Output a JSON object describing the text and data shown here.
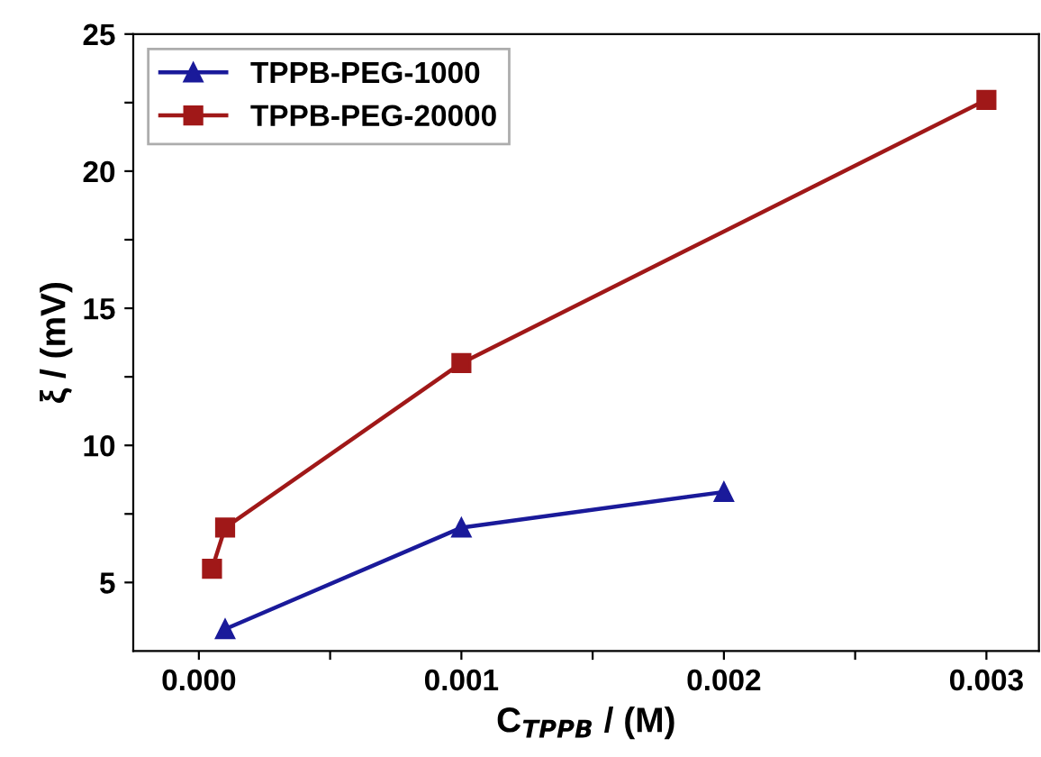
{
  "chart_data": {
    "type": "line",
    "xlabel": "C$_{TPPB}$ / (M)",
    "ylabel": "ξ / (mV)",
    "xlim": [
      -0.00025,
      0.0032
    ],
    "ylim": [
      2.5,
      25
    ],
    "xticks": [
      {
        "value": 0.0,
        "label": "0.000"
      },
      {
        "value": 0.0005,
        "label": null
      },
      {
        "value": 0.001,
        "label": "0.001"
      },
      {
        "value": 0.0015,
        "label": null
      },
      {
        "value": 0.002,
        "label": "0.002"
      },
      {
        "value": 0.0025,
        "label": null
      },
      {
        "value": 0.003,
        "label": "0.003"
      }
    ],
    "yticks": [
      5,
      {
        "value": 7.5,
        "label": null
      },
      10,
      {
        "value": 12.5,
        "label": null
      },
      15,
      {
        "value": 17.5,
        "label": null
      },
      20,
      {
        "value": 22.5,
        "label": null
      },
      25
    ],
    "grid": false,
    "legend": "top left",
    "line_style": "solid",
    "series": [
      {
        "name": "TPPB-PEG-1000",
        "color": "#1a1a9a",
        "marker": "triangle",
        "x": [
          0.0001,
          0.001,
          0.002
        ],
        "values": [
          3.3,
          7.0,
          8.3
        ]
      },
      {
        "name": "TPPB-PEG-20000",
        "color": "#a01818",
        "marker": "square",
        "x": [
          5e-05,
          0.0001,
          0.001,
          0.003
        ],
        "values": [
          5.5,
          7.0,
          13.0,
          22.6
        ]
      }
    ]
  }
}
